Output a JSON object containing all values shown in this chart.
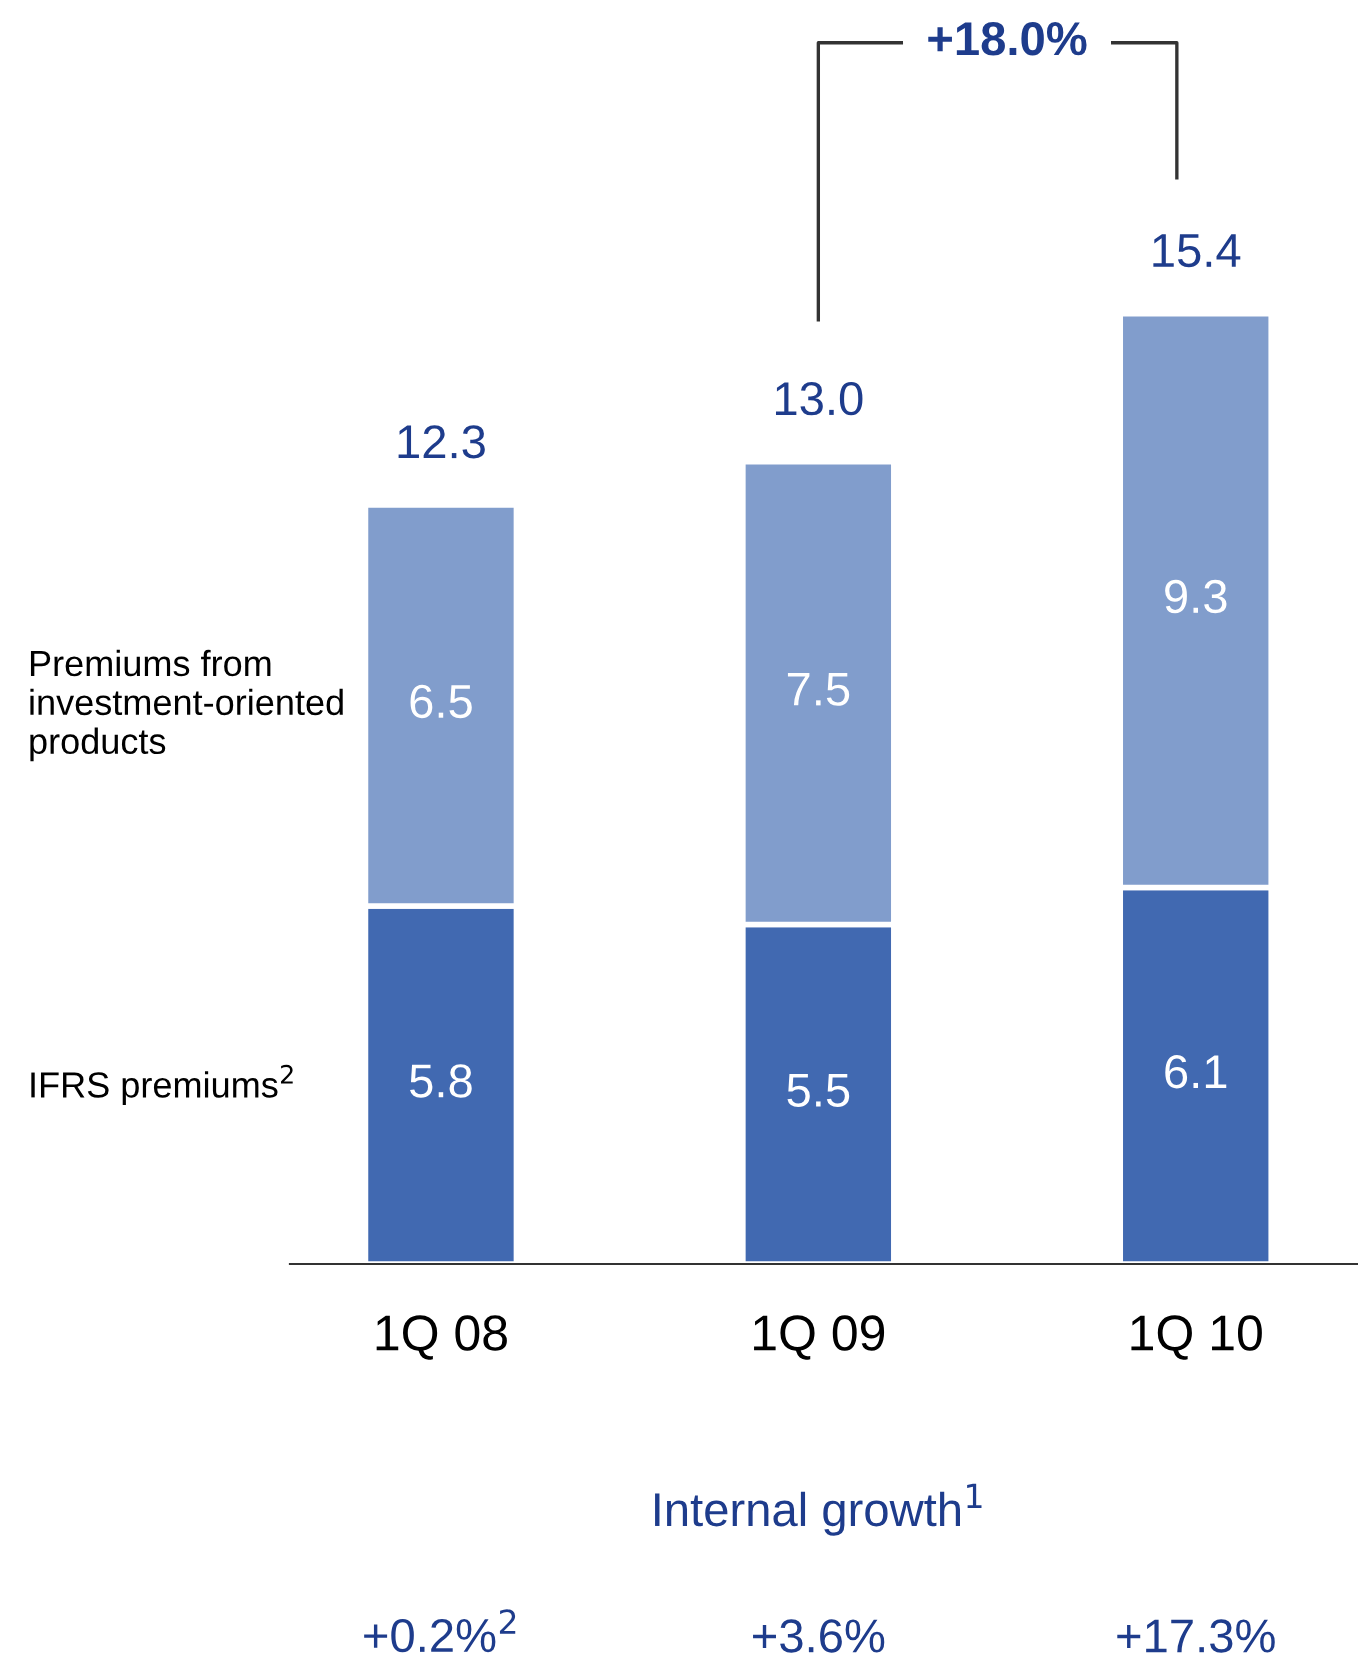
{
  "chart_data": {
    "type": "bar",
    "stacked": true,
    "data_labels": true,
    "categories": [
      "1Q 08",
      "1Q 09",
      "1Q 10"
    ],
    "series": [
      {
        "name": "IFRS premiums$^{2}$",
        "color": "#4169b1",
        "values": [
          5.8,
          5.5,
          6.1
        ]
      },
      {
        "name": "Premiums from investment-oriented products",
        "color": "#819dcc",
        "values": [
          6.5,
          7.5,
          9.3
        ]
      }
    ],
    "totals": [
      "12.3",
      "13.0",
      "15.4"
    ],
    "annotations": [
      "+18.0%",
      "Internal growth$^{1}$",
      "+0.2%$^{2}$",
      "+3.6%",
      "+17.3%"
    ],
    "grid": false,
    "legend": false
  }
}
